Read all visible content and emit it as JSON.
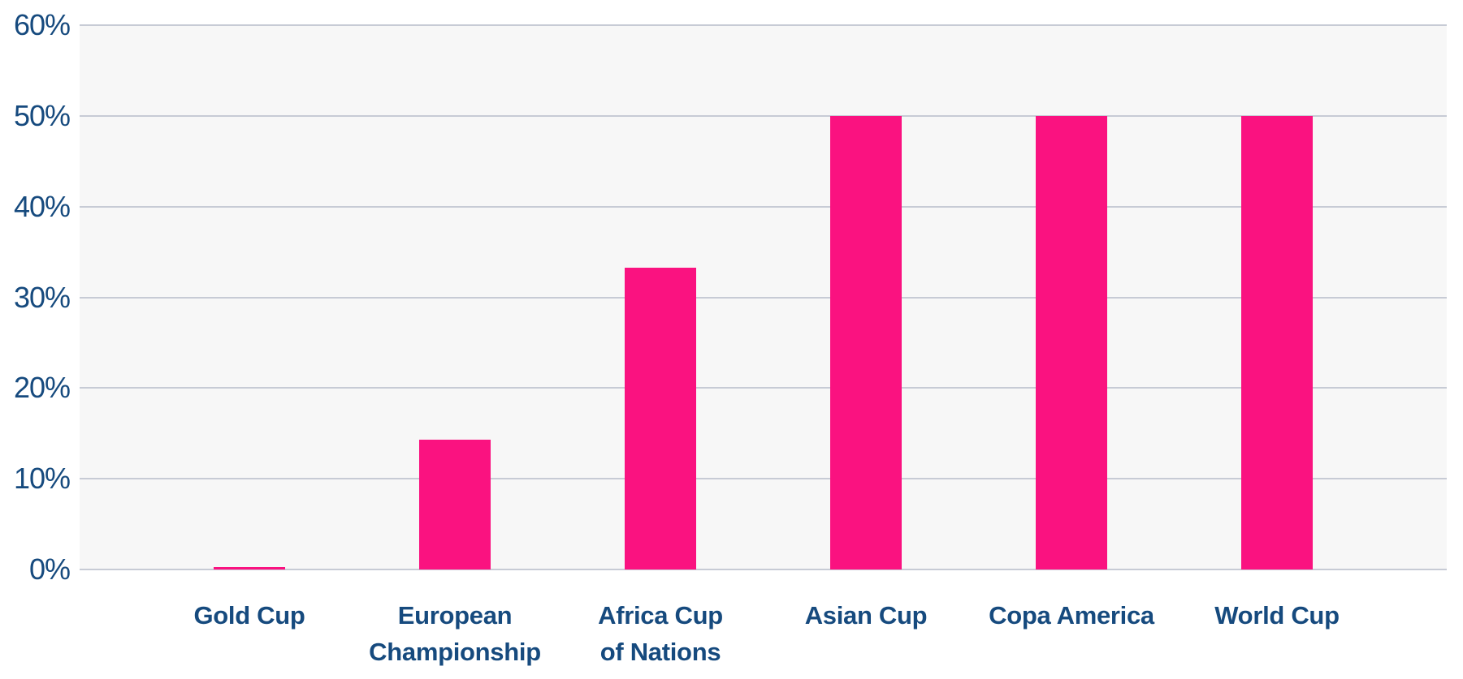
{
  "chart_data": {
    "type": "bar",
    "title": "",
    "xlabel": "",
    "ylabel": "",
    "categories": [
      "Gold Cup",
      "European Championship",
      "Africa Cup of Nations",
      "Asian Cup",
      "Copa America",
      "World Cup"
    ],
    "category_label_lines": [
      [
        "Gold Cup"
      ],
      [
        "European",
        "Championship"
      ],
      [
        "Africa Cup",
        "of Nations"
      ],
      [
        "Asian Cup"
      ],
      [
        "Copa America"
      ],
      [
        "World Cup"
      ]
    ],
    "values": [
      0.3,
      14.3,
      33.3,
      50,
      50,
      50
    ],
    "value_unit": "%",
    "ylim": [
      0,
      60
    ],
    "y_ticks": [
      {
        "value": 0,
        "label": "0%"
      },
      {
        "value": 10,
        "label": "10%"
      },
      {
        "value": 20,
        "label": "20%"
      },
      {
        "value": 30,
        "label": "30%"
      },
      {
        "value": 40,
        "label": "40%"
      },
      {
        "value": 50,
        "label": "50%"
      },
      {
        "value": 60,
        "label": "60%"
      }
    ],
    "grid": "horizontal",
    "legend_position": "none",
    "colors": {
      "bar": "#fa1280",
      "axis_text": "#164a7e",
      "gridline": "#c7cbd5",
      "plot_background": "#f7f7f7",
      "page_background": "#ffffff"
    }
  }
}
